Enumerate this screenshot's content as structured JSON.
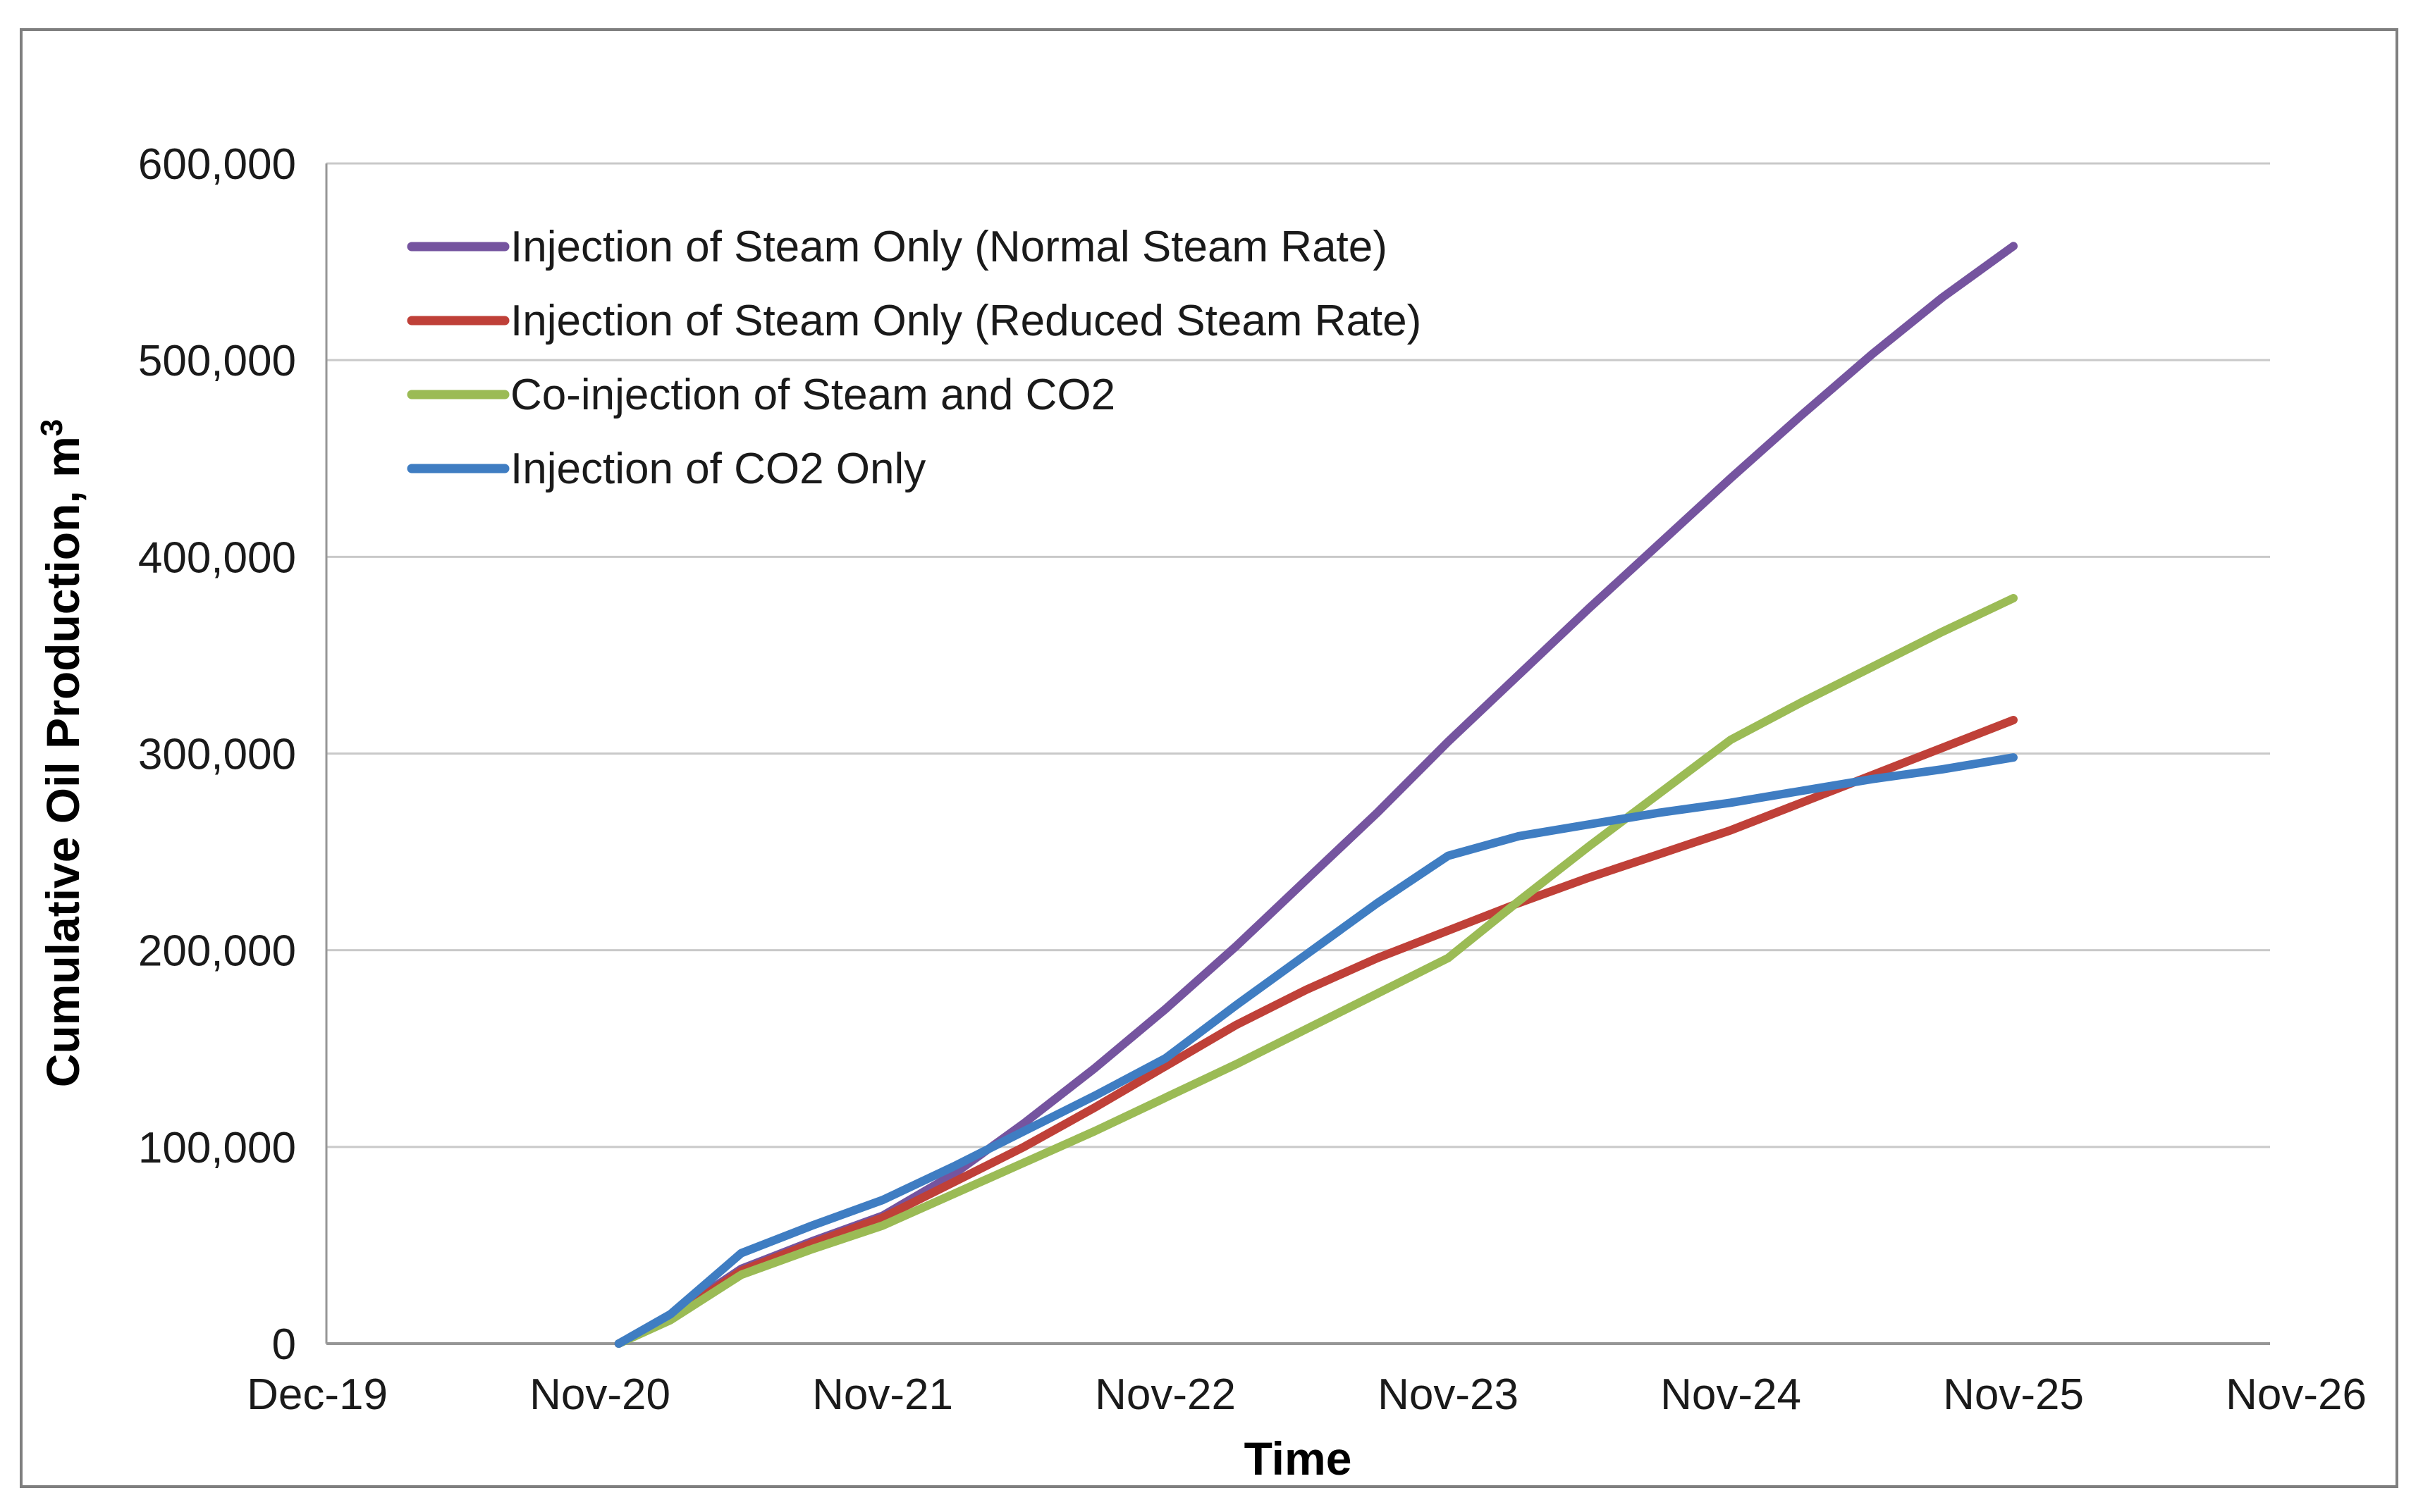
{
  "figure": {
    "background": "#FFFFFF",
    "border_color": "#7F7F7F"
  },
  "chart_data": {
    "type": "line",
    "title": "",
    "xlabel": "Time",
    "ylabel": "Cumulative Oil Production,  m³",
    "ylabel_main": "Cumulative Oil Production,  m",
    "ylabel_superscript": "3",
    "x_tick_labels": [
      "Dec-19",
      "Nov-20",
      "Nov-21",
      "Nov-22",
      "Nov-23",
      "Nov-24",
      "Nov-25",
      "Nov-26"
    ],
    "y_tick_labels": [
      "0",
      "100,000",
      "200,000",
      "300,000",
      "400,000",
      "500,000",
      "600,000"
    ],
    "ylim": [
      0,
      600000
    ],
    "y_tick_step": 100000,
    "grid": "horizontal",
    "legend_position": "inside-top-left",
    "x_unit": "months after Nov-20 (curves start ~Dec-20)",
    "x_months": [
      0.8,
      3,
      6,
      9,
      12,
      15,
      18,
      21,
      24,
      27,
      30,
      33,
      36,
      39,
      42,
      45,
      48,
      51,
      54,
      57,
      60
    ],
    "series": [
      {
        "id": "steam-normal",
        "name": "Injection of Steam Only (Normal Steam Rate)",
        "color": "#75549F",
        "values": [
          0,
          14000,
          38000,
          52000,
          65000,
          86000,
          112000,
          140000,
          170000,
          202000,
          236000,
          270000,
          306000,
          340000,
          374000,
          407000,
          440000,
          472000,
          503000,
          532000,
          558000
        ]
      },
      {
        "id": "steam-reduced",
        "name": "Injection of Steam Only (Reduced Steam Rate)",
        "color": "#BF4038",
        "values": [
          0,
          13000,
          37000,
          51000,
          64000,
          82000,
          100000,
          120000,
          141000,
          162000,
          180000,
          196000,
          210000,
          224000,
          237000,
          249000,
          261000,
          275000,
          289000,
          303000,
          317000
        ]
      },
      {
        "id": "steam-co2",
        "name": "Co-injection of Steam and CO2",
        "color": "#9BBB55",
        "values": [
          0,
          12000,
          35000,
          48000,
          60000,
          76000,
          92000,
          108000,
          125000,
          142000,
          160000,
          178000,
          196000,
          225000,
          253000,
          280000,
          307000,
          326000,
          344000,
          362000,
          379000
        ]
      },
      {
        "id": "co2-only",
        "name": "Injection of CO2 Only",
        "color": "#3F7DC2",
        "values": [
          0,
          15000,
          46000,
          60000,
          73000,
          90000,
          108000,
          126000,
          145000,
          172000,
          198000,
          224000,
          248000,
          258000,
          264000,
          270000,
          275000,
          281000,
          287000,
          292000,
          298000
        ]
      }
    ],
    "palette": {
      "grid": "#C9C9C9",
      "axis": "#969696",
      "border": "#7F7F7F",
      "text": "#1A1A1A",
      "background": "#FFFFFF"
    }
  }
}
